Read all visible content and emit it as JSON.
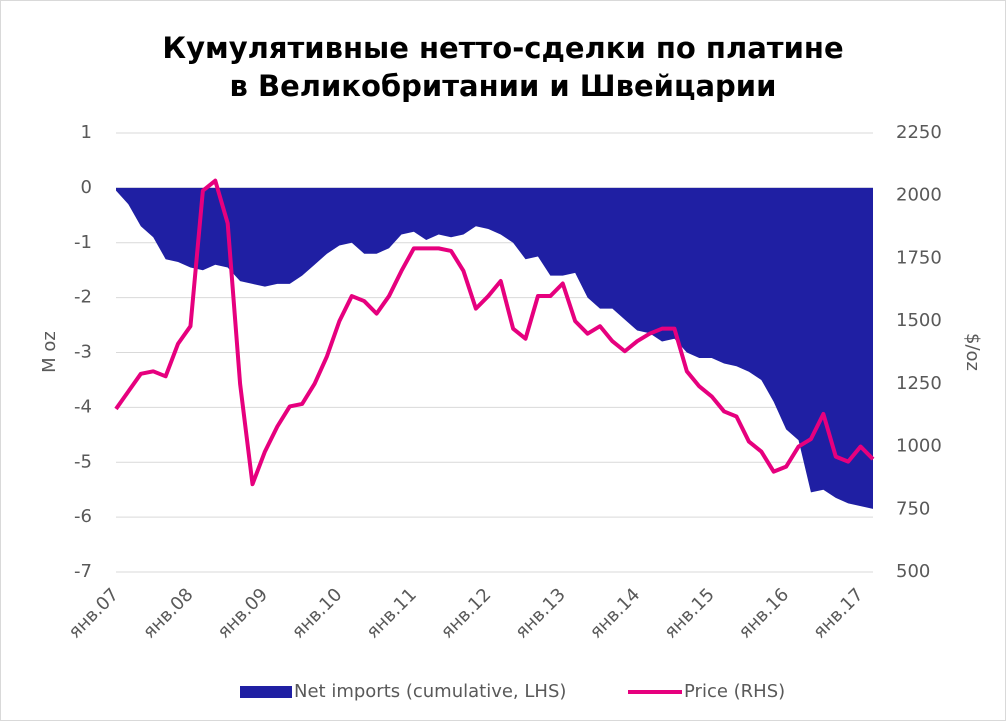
{
  "chart_data": {
    "type": "area_line",
    "title": [
      "Кумулятивные нетто-сделки по платине",
      "в Великобритании и Швейцарии"
    ],
    "ylabel": "M oz",
    "y2label": "$/oz",
    "categories": [
      "янв.07",
      null,
      null,
      null,
      null,
      null,
      "янв.08",
      null,
      null,
      null,
      null,
      null,
      "янв.09",
      null,
      null,
      null,
      null,
      null,
      "янв.10",
      null,
      null,
      null,
      null,
      null,
      "янв.11",
      null,
      null,
      null,
      null,
      null,
      "янв.12",
      null,
      null,
      null,
      null,
      null,
      "янв.13",
      null,
      null,
      null,
      null,
      null,
      "янв.14",
      null,
      null,
      null,
      null,
      null,
      "янв.15",
      null,
      null,
      null,
      null,
      null,
      "янв.16",
      null,
      null,
      null,
      null,
      null,
      "янв.17",
      null
    ],
    "series": [
      {
        "name": "Net imports (cumulative, LHS)",
        "color": "#1f1fa3",
        "kind": "area",
        "axis": "y",
        "values": [
          -0.05,
          -0.3,
          -0.7,
          -0.9,
          -1.3,
          -1.35,
          -1.45,
          -1.5,
          -1.4,
          -1.45,
          -1.7,
          -1.75,
          -1.8,
          -1.75,
          -1.75,
          -1.6,
          -1.4,
          -1.2,
          -1.05,
          -1.0,
          -1.2,
          -1.2,
          -1.1,
          -0.85,
          -0.8,
          -0.95,
          -0.85,
          -0.9,
          -0.85,
          -0.7,
          -0.75,
          -0.85,
          -1.0,
          -1.3,
          -1.25,
          -1.6,
          -1.6,
          -1.55,
          -2.0,
          -2.2,
          -2.2,
          -2.4,
          -2.6,
          -2.65,
          -2.8,
          -2.75,
          -3.0,
          -3.1,
          -3.1,
          -3.2,
          -3.25,
          -3.35,
          -3.5,
          -3.9,
          -4.4,
          -4.6,
          -5.55,
          -5.5,
          -5.65,
          -5.75,
          -5.8,
          -5.85
        ]
      },
      {
        "name": "Price (RHS)",
        "color": "#e6007e",
        "kind": "line",
        "axis": "y2",
        "values": [
          1150,
          1220,
          1290,
          1300,
          1280,
          1410,
          1480,
          2020,
          2060,
          1890,
          1250,
          850,
          980,
          1080,
          1160,
          1170,
          1250,
          1360,
          1500,
          1600,
          1580,
          1530,
          1600,
          1700,
          1790,
          1790,
          1790,
          1780,
          1700,
          1550,
          1600,
          1660,
          1470,
          1430,
          1600,
          1600,
          1650,
          1500,
          1450,
          1480,
          1420,
          1380,
          1420,
          1450,
          1470,
          1470,
          1300,
          1240,
          1200,
          1140,
          1120,
          1020,
          980,
          900,
          920,
          1000,
          1030,
          1130,
          960,
          940,
          1000,
          950
        ]
      }
    ],
    "ylim": [
      -7,
      1
    ],
    "yticks": [
      -7,
      -6,
      -5,
      -4,
      -3,
      -2,
      -1,
      0,
      1
    ],
    "y2lim": [
      500,
      2250
    ],
    "y2ticks": [
      500,
      750,
      1000,
      1250,
      1500,
      1750,
      2000,
      2250
    ],
    "grid": true,
    "legend": "bottom"
  }
}
